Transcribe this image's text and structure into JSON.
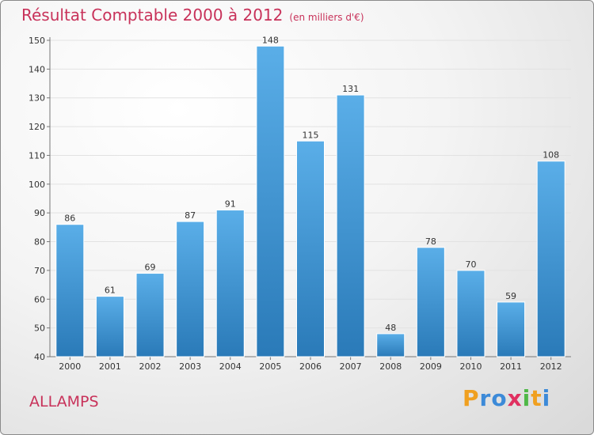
{
  "header": {
    "title": "Résultat Comptable 2000 à 2012",
    "subtitle": "(en milliers d'€)"
  },
  "commune": "ALLAMPS",
  "logo": {
    "text": "Proxiti",
    "letters": [
      {
        "ch": "P",
        "color": "#f0a020"
      },
      {
        "ch": "r",
        "color": "#3c8ad8"
      },
      {
        "ch": "o",
        "color": "#3c8ad8"
      },
      {
        "ch": "x",
        "color": "#e03060"
      },
      {
        "ch": "i",
        "color": "#50b848"
      },
      {
        "ch": "t",
        "color": "#f0a020"
      },
      {
        "ch": "i",
        "color": "#3c8ad8"
      }
    ]
  },
  "chart_data": {
    "type": "bar",
    "title": "Résultat Comptable 2000 à 2012",
    "subtitle": "(en milliers d'€)",
    "categories": [
      "2000",
      "2001",
      "2002",
      "2003",
      "2004",
      "2005",
      "2006",
      "2007",
      "2008",
      "2009",
      "2010",
      "2011",
      "2012"
    ],
    "values": [
      86,
      61,
      69,
      87,
      91,
      148,
      115,
      131,
      48,
      78,
      70,
      59,
      108
    ],
    "ylim": [
      40,
      150
    ],
    "yticks": [
      40,
      50,
      60,
      70,
      80,
      90,
      100,
      110,
      120,
      130,
      140,
      150
    ],
    "grid": true,
    "bar_color_top": "#5aaee8",
    "bar_color_bottom": "#2a7ab8"
  }
}
